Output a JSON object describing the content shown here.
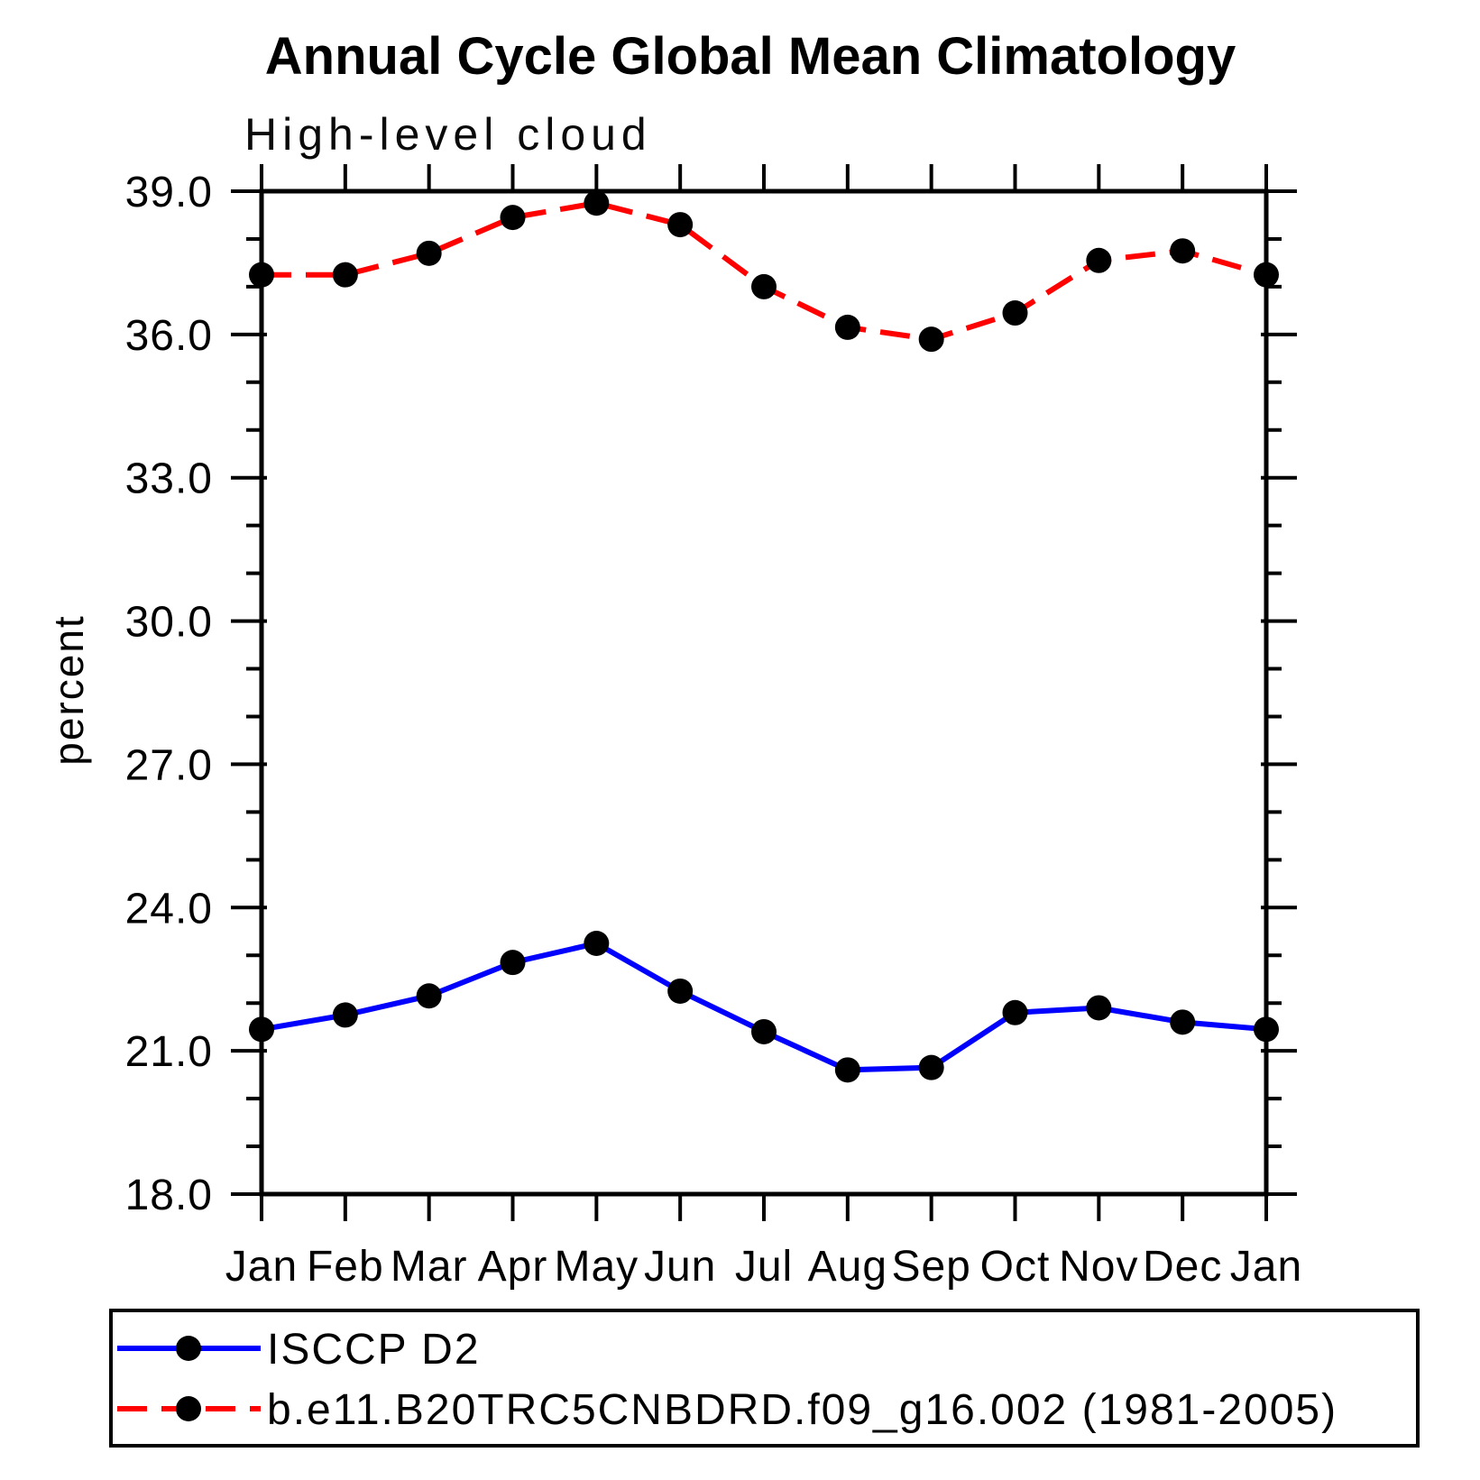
{
  "page": {
    "background": "#ffffff"
  },
  "title": "Annual Cycle Global Mean Climatology",
  "subtitle": "High-level cloud",
  "chart_data": {
    "type": "line",
    "title": "Annual Cycle Global Mean Climatology",
    "subtitle": "High-level cloud",
    "xlabel": "",
    "ylabel": "percent",
    "categories": [
      "Jan",
      "Feb",
      "Mar",
      "Apr",
      "May",
      "Jun",
      "Jul",
      "Aug",
      "Sep",
      "Oct",
      "Nov",
      "Dec",
      "Jan"
    ],
    "ylim": [
      18.0,
      39.0
    ],
    "ytick_major": 3.0,
    "ytick_minor": 1.0,
    "ytick_labels": [
      "39.0",
      "36.0",
      "33.0",
      "30.0",
      "27.0",
      "24.0",
      "21.0",
      "18.0"
    ],
    "grid": false,
    "legend_position": "bottom-box",
    "axis_color": "#000000",
    "marker_color": "#000000",
    "series": [
      {
        "name": "ISCCP D2",
        "color": "#0000ff",
        "line_style": "solid",
        "marker": "filled-circle",
        "values": [
          21.45,
          21.75,
          22.15,
          22.85,
          23.25,
          22.25,
          21.4,
          20.6,
          20.65,
          21.8,
          21.9,
          21.6,
          21.45
        ]
      },
      {
        "name": "b.e11.B20TRC5CNBDRD.f09_g16.002 (1981-2005)",
        "color": "#ff0000",
        "line_style": "dashed",
        "marker": "filled-circle",
        "values": [
          37.25,
          37.25,
          37.7,
          38.45,
          38.75,
          38.3,
          37.0,
          36.15,
          35.9,
          36.45,
          37.55,
          37.75,
          37.25
        ]
      }
    ]
  }
}
